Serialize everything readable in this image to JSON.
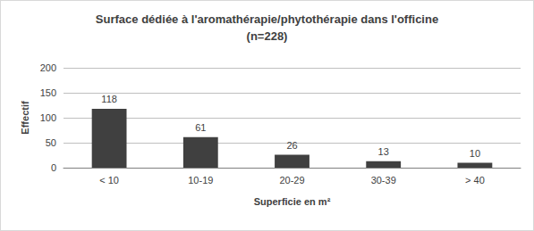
{
  "chart_data": {
    "type": "bar",
    "title": "Surface dédiée à l'aromathérapie/phytothérapie dans l'officine\n(n=228)",
    "x_label": "Superficie en m²",
    "y_label": "Effectif",
    "categories": [
      "< 10",
      "10-19",
      "20-29",
      "30-39",
      "> 40"
    ],
    "values": [
      118,
      61,
      26,
      13,
      10
    ],
    "color": "#404040",
    "ylim": [
      0,
      200
    ],
    "yticks": [
      0,
      50,
      100,
      150,
      200
    ],
    "grid": true,
    "data_labels": true
  }
}
